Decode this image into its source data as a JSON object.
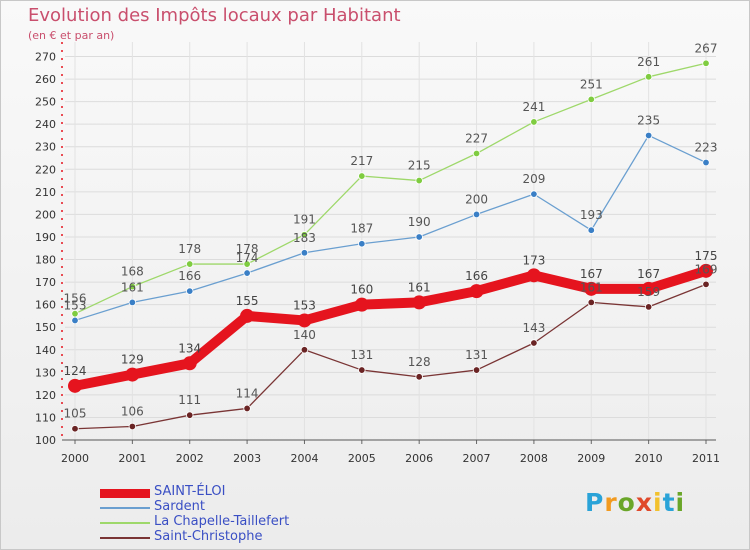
{
  "title": "Evolution des Impôts locaux par Habitant",
  "subtitle": "(en € et par an)",
  "brand": {
    "text": "Proxiti",
    "letter_colors": [
      "#2aa3d8",
      "#f29a1f",
      "#6aa629",
      "#e0492b",
      "#f2c12e",
      "#2aa3d8",
      "#6aa629"
    ]
  },
  "chart_data": {
    "type": "line",
    "title": "Evolution des Impôts locaux par Habitant",
    "subtitle": "(en € et par an)",
    "x": [
      "2000",
      "2001",
      "2002",
      "2003",
      "2004",
      "2005",
      "2006",
      "2007",
      "2008",
      "2009",
      "2010",
      "2011"
    ],
    "yticks": [
      "100",
      "110",
      "120",
      "130",
      "140",
      "150",
      "160",
      "170",
      "180",
      "190",
      "200",
      "210",
      "220",
      "230",
      "240",
      "250",
      "260",
      "270"
    ],
    "ylim": [
      100,
      272
    ],
    "grid": true,
    "legend_position": "bottom-left",
    "series": [
      {
        "name": "SAINT-ÉLOI",
        "color": "#e5141e",
        "marker_color": "#e5141e",
        "label_color": "#444444",
        "values": [
          124,
          129,
          134,
          155,
          153,
          160,
          161,
          166,
          173,
          167,
          167,
          175
        ],
        "labels": [
          "124",
          "129",
          "134",
          "155",
          "153",
          "160",
          "161",
          "166",
          "173",
          "167",
          "167",
          "175"
        ]
      },
      {
        "name": "Sardent",
        "color": "#6a9fd0",
        "marker_color": "#3a7fc6",
        "label_color": "#555555",
        "values": [
          153,
          161,
          166,
          174,
          183,
          187,
          190,
          200,
          209,
          193,
          235,
          223
        ],
        "labels": [
          "153",
          "161",
          "166",
          "174",
          "183",
          "187",
          "190",
          "200",
          "209",
          "193",
          "235",
          "223"
        ]
      },
      {
        "name": "La Chapelle-Taillefert",
        "color": "#9ed86a",
        "marker_color": "#7fcc40",
        "label_color": "#555555",
        "values": [
          156,
          168,
          178,
          178,
          191,
          217,
          215,
          227,
          241,
          251,
          261,
          267
        ],
        "labels": [
          "156",
          "168",
          "178",
          "178",
          "191",
          "217",
          "215",
          "227",
          "241",
          "251",
          "261",
          "267"
        ]
      },
      {
        "name": "Saint-Christophe",
        "color": "#7a3535",
        "marker_color": "#6a2424",
        "label_color": "#555555",
        "values": [
          105,
          106,
          111,
          114,
          140,
          131,
          128,
          131,
          143,
          161,
          159,
          169
        ],
        "labels": [
          "105",
          "106",
          "111",
          "114",
          "140",
          "131",
          "128",
          "131",
          "143",
          "161",
          "159",
          "169"
        ]
      }
    ]
  }
}
